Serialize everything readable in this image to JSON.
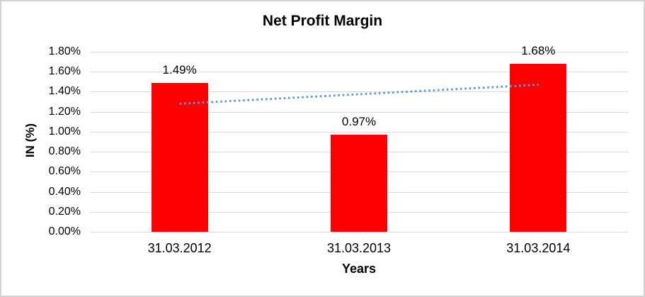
{
  "chart_data": {
    "type": "bar",
    "title": "Net Profit Margin",
    "xlabel": "Years",
    "ylabel": "IN (%)",
    "categories": [
      "31.03.2012",
      "31.03.2013",
      "31.03.2014"
    ],
    "values": [
      1.49,
      0.97,
      1.68
    ],
    "data_labels": [
      "1.49%",
      "0.97%",
      "1.68%"
    ],
    "y_ticks_top_to_bottom": [
      "1.80%",
      "1.60%",
      "1.40%",
      "1.20%",
      "1.00%",
      "0.80%",
      "0.60%",
      "0.40%",
      "0.20%",
      "0.00%"
    ],
    "ylim": [
      0,
      1.8
    ],
    "grid": true,
    "legend": false,
    "bar_color": "#FF0000",
    "trendline": {
      "style": "dotted",
      "color": "#5B9BD5",
      "start_value": 1.28,
      "end_value": 1.47
    }
  },
  "colors": {
    "gridline": "#D9D9D9",
    "frame_border": "#D3D3D3",
    "text": "#000000",
    "background": "#FFFFFF"
  }
}
